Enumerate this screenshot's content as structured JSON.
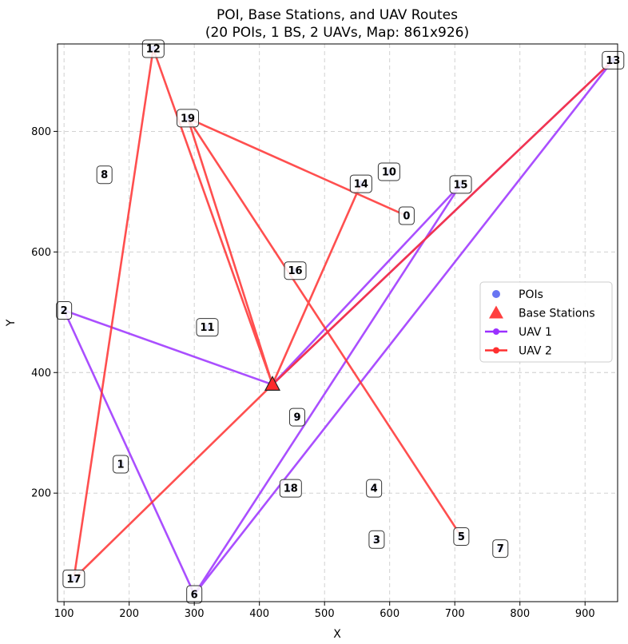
{
  "chart_data": {
    "type": "scatter",
    "title": "POI, Base Stations, and UAV Routes",
    "subtitle": "(20 POIs, 1 BS, 2 UAVs, Map: 861x926)",
    "xlabel": "X",
    "ylabel": "Y",
    "xlim": [
      90,
      950
    ],
    "ylim": [
      20,
      945
    ],
    "x_ticks": [
      100,
      200,
      300,
      400,
      500,
      600,
      700,
      800,
      900
    ],
    "y_ticks": [
      200,
      400,
      600,
      800
    ],
    "grid": true,
    "legend_position": "right",
    "pois": [
      {
        "id": "0",
        "x": 626,
        "y": 660
      },
      {
        "id": "1",
        "x": 187,
        "y": 248
      },
      {
        "id": "2",
        "x": 100,
        "y": 503
      },
      {
        "id": "3",
        "x": 580,
        "y": 123
      },
      {
        "id": "4",
        "x": 576,
        "y": 208
      },
      {
        "id": "5",
        "x": 710,
        "y": 128
      },
      {
        "id": "6",
        "x": 300,
        "y": 32
      },
      {
        "id": "7",
        "x": 770,
        "y": 108
      },
      {
        "id": "8",
        "x": 162,
        "y": 728
      },
      {
        "id": "9",
        "x": 458,
        "y": 326
      },
      {
        "id": "10",
        "x": 599,
        "y": 733
      },
      {
        "id": "11",
        "x": 320,
        "y": 475
      },
      {
        "id": "12",
        "x": 237,
        "y": 937
      },
      {
        "id": "13",
        "x": 943,
        "y": 918
      },
      {
        "id": "14",
        "x": 556,
        "y": 713
      },
      {
        "id": "15",
        "x": 709,
        "y": 712
      },
      {
        "id": "16",
        "x": 455,
        "y": 569
      },
      {
        "id": "17",
        "x": 115,
        "y": 58
      },
      {
        "id": "18",
        "x": 448,
        "y": 208
      },
      {
        "id": "19",
        "x": 290,
        "y": 822
      }
    ],
    "base_stations": [
      {
        "x": 420,
        "y": 380
      }
    ],
    "series": [
      {
        "name": "UAV 1",
        "color": "#9b30ff",
        "route": [
          [
            420,
            380
          ],
          [
            100,
            503
          ],
          [
            300,
            32
          ],
          [
            709,
            712
          ],
          [
            420,
            380
          ],
          [
            943,
            918
          ],
          [
            300,
            32
          ]
        ]
      },
      {
        "name": "UAV 2",
        "color": "#ff3030",
        "route": [
          [
            420,
            380
          ],
          [
            556,
            713
          ],
          [
            420,
            380
          ],
          [
            943,
            918
          ],
          [
            420,
            380
          ],
          [
            115,
            58
          ],
          [
            237,
            937
          ],
          [
            420,
            380
          ],
          [
            290,
            822
          ],
          [
            710,
            128
          ],
          [
            290,
            822
          ],
          [
            626,
            660
          ]
        ]
      }
    ],
    "legend": [
      {
        "label": "POIs",
        "marker": "circle",
        "color": "#4d5df0"
      },
      {
        "label": "Base Stations",
        "marker": "triangle",
        "color": "#ff2a2a"
      },
      {
        "label": "UAV 1",
        "marker": "line",
        "color": "#9b30ff"
      },
      {
        "label": "UAV 2",
        "marker": "line",
        "color": "#ff3030"
      }
    ]
  }
}
